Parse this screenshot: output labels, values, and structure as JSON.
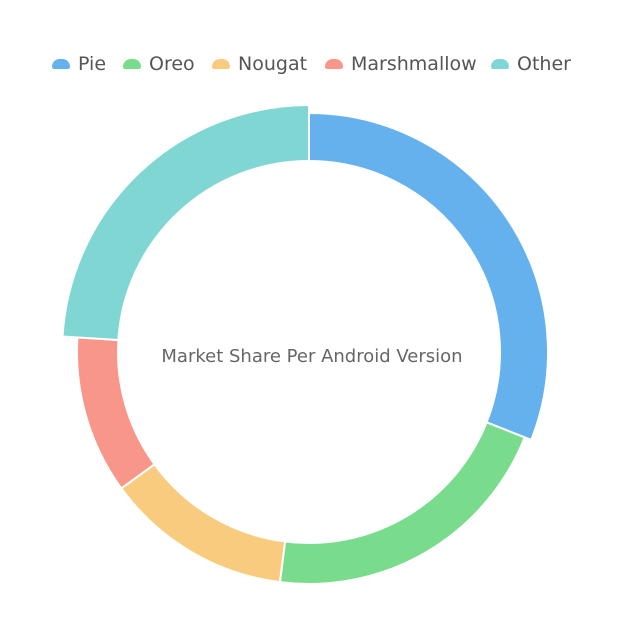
{
  "chart_data": {
    "type": "pie",
    "title": "Market Share Per Android Version",
    "donut": true,
    "legend_position": "top",
    "slices": [
      {
        "label": "Pie",
        "value": 31,
        "color": "#64b1ee"
      },
      {
        "label": "Oreo",
        "value": 21,
        "color": "#78dc8c"
      },
      {
        "label": "Nougat",
        "value": 13,
        "color": "#f9cb7f"
      },
      {
        "label": "Marshmallow",
        "value": 11,
        "color": "#f8968a"
      },
      {
        "label": "Other",
        "value": 24,
        "color": "#7fd6d2"
      }
    ]
  }
}
